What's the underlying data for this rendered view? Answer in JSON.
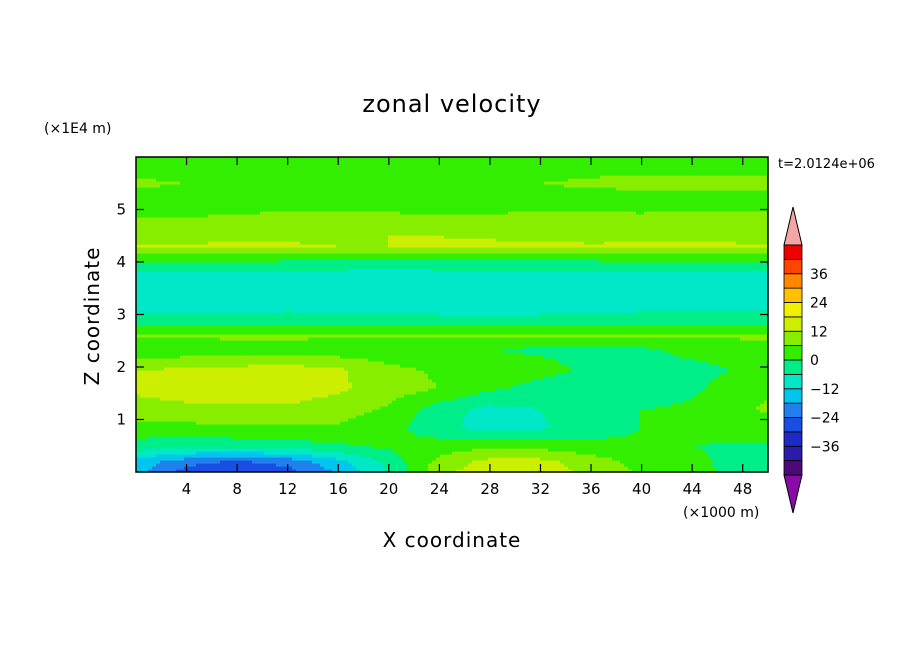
{
  "chart_data": {
    "type": "heatmap",
    "title": "zonal velocity",
    "xlabel": "X coordinate",
    "ylabel": "Z coordinate",
    "x_unit": "(×1000 m)",
    "y_unit": "(×1E4 m)",
    "time_label": "t=2.0124e+06",
    "xlim": [
      0,
      50
    ],
    "ylim": [
      0,
      6
    ],
    "x_ticks": [
      4,
      8,
      12,
      16,
      20,
      24,
      28,
      32,
      36,
      40,
      44,
      48
    ],
    "y_ticks": [
      1,
      2,
      3,
      4,
      5
    ],
    "colorbar": {
      "ticks": [
        36,
        24,
        12,
        0,
        -12,
        -24,
        -36
      ],
      "levels": [
        -42,
        -36,
        -30,
        -24,
        -18,
        -12,
        -6,
        0,
        6,
        12,
        18,
        24,
        30,
        36,
        42
      ],
      "colors": [
        "#4b0a78",
        "#2a1ca8",
        "#1e2ac8",
        "#1a4ee0",
        "#2080ee",
        "#00c6ee",
        "#00e8c8",
        "#00ee88",
        "#33ee00",
        "#88ee00",
        "#ccee00",
        "#f0f000",
        "#ffc000",
        "#ff8800",
        "#ff4400",
        "#ee0000"
      ],
      "over_color": "#f4a6a6",
      "under_color": "#8a0aa8"
    },
    "field_rows": [
      {
        "z": 5.95,
        "u": [
          3,
          3,
          3,
          3,
          3,
          3,
          3,
          3,
          3,
          3,
          3,
          3,
          3
        ]
      },
      {
        "z": 5.5,
        "u": [
          7,
          6,
          5,
          4,
          4,
          4,
          5,
          5,
          6,
          7,
          8,
          8,
          8
        ]
      },
      {
        "z": 5.2,
        "u": [
          3,
          3,
          2,
          2,
          1,
          1,
          1,
          2,
          3,
          3,
          3,
          3,
          3
        ]
      },
      {
        "z": 4.85,
        "u": [
          6,
          6,
          7,
          8,
          8,
          8,
          7,
          7,
          8,
          8,
          7,
          8,
          8
        ]
      },
      {
        "z": 4.5,
        "u": [
          8,
          8,
          9,
          9,
          10,
          12,
          12,
          11,
          10,
          10,
          9,
          9,
          8
        ]
      },
      {
        "z": 4.3,
        "u": [
          13,
          14,
          14,
          14,
          12,
          12,
          13,
          14,
          14,
          13,
          14,
          14,
          14
        ]
      },
      {
        "z": 4.1,
        "u": [
          3,
          3,
          3,
          2,
          2,
          2,
          2,
          2,
          2,
          2,
          3,
          3,
          3
        ]
      },
      {
        "z": 3.7,
        "u": [
          -9,
          -9,
          -10,
          -10,
          -11,
          -12,
          -11,
          -10,
          -10,
          -10,
          -9,
          -9,
          -9
        ]
      },
      {
        "z": 3.3,
        "u": [
          -10,
          -10,
          -10,
          -9,
          -10,
          -10,
          -9,
          -9,
          -9,
          -10,
          -9,
          -9,
          -9
        ]
      },
      {
        "z": 2.9,
        "u": [
          -4,
          -4,
          -4,
          -4,
          -4,
          -4,
          -5,
          -5,
          -5,
          -4,
          -4,
          -4,
          -4
        ]
      },
      {
        "z": 2.6,
        "u": [
          7,
          7,
          7,
          7,
          7,
          7,
          7,
          7,
          7,
          7,
          7,
          7,
          7
        ]
      },
      {
        "z": 2.35,
        "u": [
          1,
          2,
          3,
          3,
          2,
          1,
          1,
          0,
          -1,
          -2,
          -1,
          2,
          3
        ]
      },
      {
        "z": 1.95,
        "u": [
          12,
          13,
          14,
          15,
          13,
          8,
          5,
          3,
          2,
          -1,
          -3,
          -2,
          2
        ]
      },
      {
        "z": 1.6,
        "u": [
          13,
          14,
          15,
          15,
          13,
          9,
          6,
          1,
          -2,
          -5,
          -4,
          -1,
          5
        ]
      },
      {
        "z": 1.2,
        "u": [
          10,
          11,
          11,
          11,
          9,
          5,
          -3,
          -8,
          -6,
          -2,
          0,
          1,
          7
        ]
      },
      {
        "z": 0.85,
        "u": [
          4,
          4,
          5,
          5,
          5,
          2,
          -4,
          -9,
          -7,
          -3,
          0,
          1,
          3
        ]
      },
      {
        "z": 0.5,
        "u": [
          -3,
          -4,
          -4,
          -3,
          -1,
          1,
          3,
          5,
          4,
          2,
          1,
          0,
          -1
        ]
      },
      {
        "z": 0.2,
        "u": [
          -14,
          -22,
          -25,
          -22,
          -14,
          -4,
          8,
          14,
          14,
          9,
          4,
          1,
          -3
        ]
      },
      {
        "z": 0.02,
        "u": [
          -16,
          -26,
          -30,
          -26,
          -17,
          -6,
          10,
          16,
          15,
          10,
          5,
          2,
          -4
        ]
      }
    ],
    "field_x": [
      0,
      4,
      8,
      12,
      16,
      20,
      24,
      28,
      32,
      36,
      40,
      44,
      50
    ]
  }
}
